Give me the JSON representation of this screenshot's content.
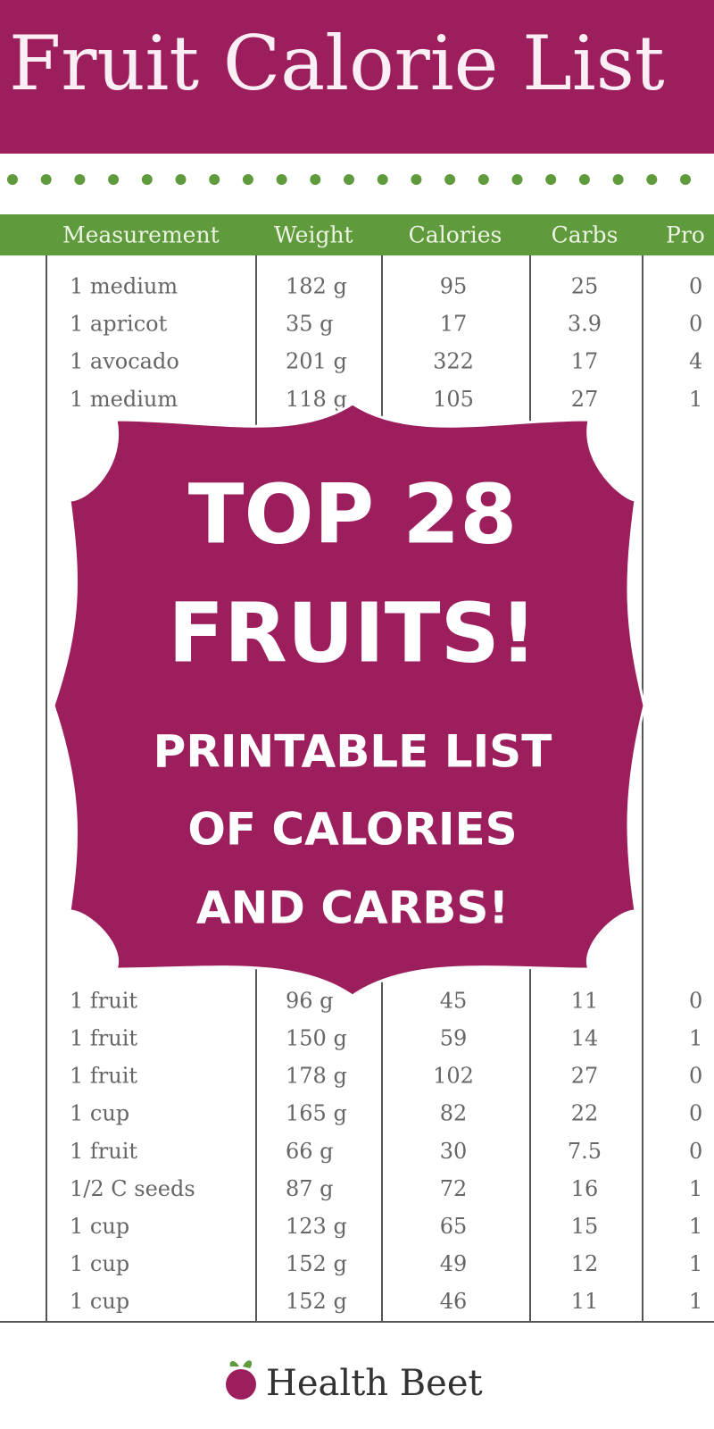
{
  "header": {
    "title": "Fruit Calorie List"
  },
  "table": {
    "columns": [
      "Measurement",
      "Weight",
      "Calories",
      "Carbs",
      "Pro"
    ],
    "top_rows": [
      [
        "1 medium",
        "182 g",
        "95",
        "25",
        "0"
      ],
      [
        "1 apricot",
        "35 g",
        "17",
        "3.9",
        "0"
      ],
      [
        "1 avocado",
        "201 g",
        "322",
        "17",
        "4"
      ],
      [
        "1 medium",
        "118 g",
        "105",
        "27",
        "1"
      ]
    ],
    "bottom_rows": [
      [
        "1 fruit",
        "96 g",
        "45",
        "11",
        "0"
      ],
      [
        "1 fruit",
        "150 g",
        "59",
        "14",
        "1"
      ],
      [
        "1 fruit",
        "178 g",
        "102",
        "27",
        "0"
      ],
      [
        "1 cup",
        "165 g",
        "82",
        "22",
        "0"
      ],
      [
        "1 fruit",
        "66 g",
        "30",
        "7.5",
        "0"
      ],
      [
        "1/2 C seeds",
        "87 g",
        "72",
        "16",
        "1"
      ],
      [
        "1 cup",
        "123 g",
        "65",
        "15",
        "1"
      ],
      [
        "1 cup",
        "152 g",
        "49",
        "12",
        "1"
      ],
      [
        "1 cup",
        "152 g",
        "46",
        "11",
        "1"
      ]
    ]
  },
  "badge": {
    "lines": [
      "TOP 28",
      "FRUITS!",
      "PRINTABLE LIST",
      "OF CALORIES",
      "AND CARBS!"
    ]
  },
  "footer": {
    "brand": "Health Beet"
  }
}
